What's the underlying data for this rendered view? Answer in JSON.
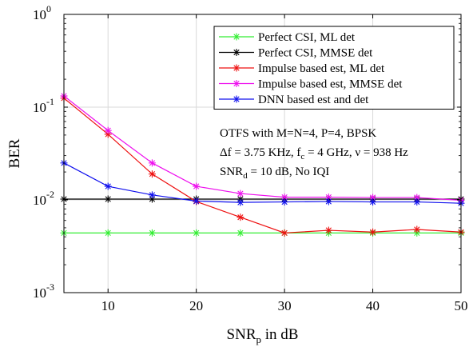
{
  "chart_data": {
    "type": "line",
    "x_scale": "linear",
    "y_scale": "log",
    "xlim": [
      5,
      50
    ],
    "ylim": [
      0.001,
      1
    ],
    "x_ticks": [
      10,
      20,
      30,
      40,
      50
    ],
    "x_tick_labels": [
      "10",
      "20",
      "30",
      "40",
      "50"
    ],
    "y_ticks": [
      0.001,
      0.01,
      0.1,
      1
    ],
    "y_tick_labels": [
      {
        "base": "10",
        "exp": "-3"
      },
      {
        "base": "10",
        "exp": "-2"
      },
      {
        "base": "10",
        "exp": "-1"
      },
      {
        "base": "10",
        "exp": "0"
      }
    ],
    "xlabel": {
      "main": "SNR",
      "sub": "p",
      "rest": " in dB"
    },
    "ylabel": "BER",
    "grid": true,
    "legend_position": "top-right",
    "x": [
      5,
      10,
      15,
      20,
      25,
      30,
      35,
      40,
      45,
      50
    ],
    "series": [
      {
        "name": "Perfect CSI, ML det",
        "color": "#33ee33",
        "marker": "asterisk",
        "values": [
          0.0044,
          0.0044,
          0.0044,
          0.0044,
          0.0044,
          0.0044,
          0.0044,
          0.0044,
          0.0044,
          0.0044
        ]
      },
      {
        "name": "Perfect CSI, MMSE det",
        "color": "#000000",
        "marker": "asterisk",
        "values": [
          0.0102,
          0.0102,
          0.0102,
          0.0102,
          0.0102,
          0.0102,
          0.0102,
          0.0102,
          0.0102,
          0.0102
        ]
      },
      {
        "name": "Impulse based est, ML det",
        "color": "#ee1111",
        "marker": "asterisk",
        "values": [
          0.125,
          0.051,
          0.019,
          0.0096,
          0.0065,
          0.0044,
          0.0047,
          0.0045,
          0.0048,
          0.0045
        ]
      },
      {
        "name": "Impulse based est, MMSE det",
        "color": "#ee11ee",
        "marker": "asterisk",
        "values": [
          0.132,
          0.056,
          0.025,
          0.014,
          0.0117,
          0.0107,
          0.0107,
          0.0106,
          0.0106,
          0.0099
        ]
      },
      {
        "name": "DNN based est and det",
        "color": "#1111ee",
        "marker": "asterisk",
        "values": [
          0.025,
          0.014,
          0.0113,
          0.0097,
          0.0094,
          0.0095,
          0.0096,
          0.0095,
          0.0095,
          0.0092
        ]
      }
    ],
    "annotation_lines": [
      [
        {
          "t": "OTFS with M=N=4, P=4, BPSK"
        }
      ],
      [
        {
          "t": "Δf = 3.75 KHz, f"
        },
        {
          "t": "c",
          "sub": true
        },
        {
          "t": " = 4 GHz, ν = 938 Hz"
        }
      ],
      [
        {
          "t": "SNR"
        },
        {
          "t": "d",
          "sub": true
        },
        {
          "t": " = 10 dB, No IQI"
        }
      ]
    ]
  }
}
